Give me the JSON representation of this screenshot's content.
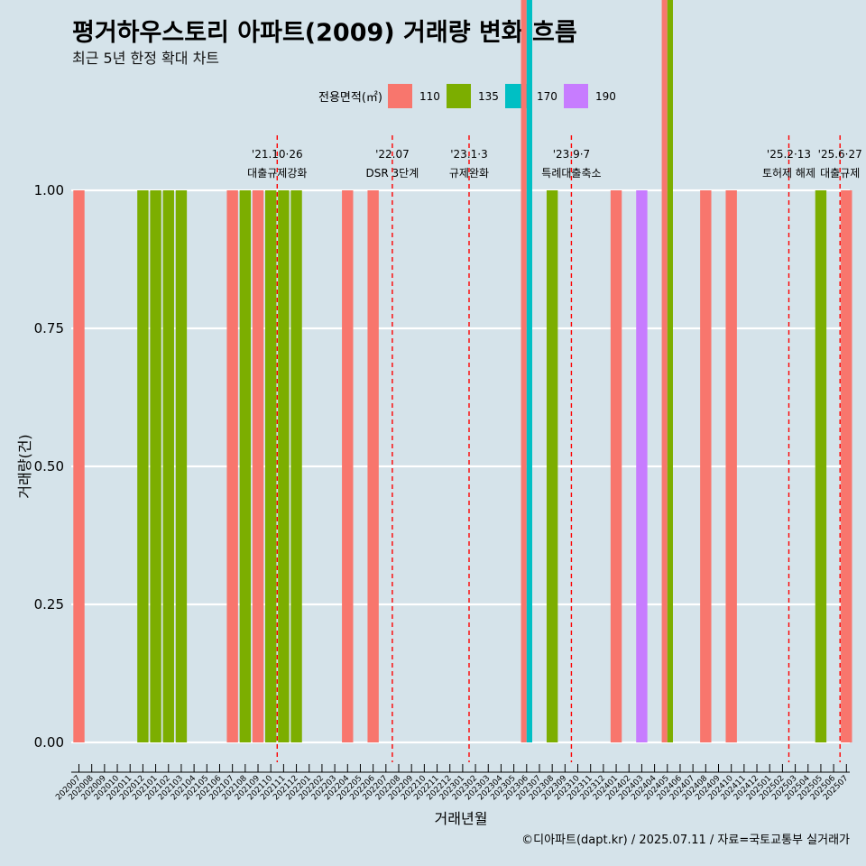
{
  "chart_data": {
    "type": "bar",
    "title": "평거하우스토리 아파트(2009) 거래량 변화 흐름",
    "subtitle": "최근 5년 한정 확대 차트",
    "xlabel": "거래년월",
    "ylabel": "거래량(건)",
    "ylim": [
      0,
      1
    ],
    "yticks": [
      "0.00",
      "0.25",
      "0.50",
      "0.75",
      "1.00"
    ],
    "grid": true,
    "legend_title": "전용면적(㎡)",
    "legend_position": "top",
    "caption": "©디아파트(dapt.kr) / 2025.07.11 / 자료=국토교통부 실거래가",
    "categories": [
      "202007",
      "202008",
      "202009",
      "202010",
      "202011",
      "202012",
      "202101",
      "202102",
      "202103",
      "202104",
      "202105",
      "202106",
      "202107",
      "202108",
      "202109",
      "202110",
      "202111",
      "202112",
      "202201",
      "202202",
      "202203",
      "202204",
      "202205",
      "202206",
      "202207",
      "202208",
      "202209",
      "202210",
      "202211",
      "202212",
      "202301",
      "202302",
      "202303",
      "202304",
      "202305",
      "202306",
      "202307",
      "202308",
      "202309",
      "202310",
      "202311",
      "202312",
      "202401",
      "202402",
      "202403",
      "202404",
      "202405",
      "202406",
      "202407",
      "202408",
      "202409",
      "202410",
      "202411",
      "202412",
      "202501",
      "202502",
      "202503",
      "202504",
      "202505",
      "202506",
      "202507"
    ],
    "series": [
      {
        "name": "110",
        "color": "#f8766d",
        "values": [
          1,
          0,
          0,
          0,
          0,
          0,
          0,
          0,
          0,
          0,
          0,
          0,
          1,
          0,
          1,
          0,
          0,
          0,
          0,
          0,
          0,
          1,
          0,
          1,
          0,
          0,
          0,
          0,
          0,
          0,
          0,
          0,
          0,
          0,
          0,
          1,
          0,
          0,
          0,
          0,
          0,
          0,
          1,
          0,
          0,
          0,
          1,
          0,
          0,
          1,
          0,
          1,
          0,
          0,
          0,
          0,
          0,
          0,
          0,
          0,
          1
        ]
      },
      {
        "name": "135",
        "color": "#7cae00",
        "values": [
          0,
          0,
          0,
          0,
          0,
          1,
          1,
          1,
          1,
          0,
          0,
          0,
          0,
          1,
          0,
          1,
          1,
          1,
          0,
          0,
          0,
          0,
          0,
          0,
          0,
          0,
          0,
          0,
          0,
          0,
          0,
          0,
          0,
          0,
          0,
          0,
          0,
          1,
          0,
          0,
          0,
          0,
          0,
          0,
          0,
          0,
          1,
          0,
          0,
          0,
          0,
          0,
          0,
          0,
          0,
          0,
          0,
          0,
          1,
          0,
          0
        ]
      },
      {
        "name": "170",
        "color": "#00bfc4",
        "values": [
          0,
          0,
          0,
          0,
          0,
          0,
          0,
          0,
          0,
          0,
          0,
          0,
          0,
          0,
          0,
          0,
          0,
          0,
          0,
          0,
          0,
          0,
          0,
          0,
          0,
          0,
          0,
          0,
          0,
          0,
          0,
          0,
          0,
          0,
          0,
          1,
          0,
          0,
          0,
          0,
          0,
          0,
          0,
          0,
          0,
          0,
          0,
          0,
          0,
          0,
          0,
          0,
          0,
          0,
          0,
          0,
          0,
          0,
          0,
          0,
          0
        ]
      },
      {
        "name": "190",
        "color": "#c77cff",
        "values": [
          0,
          0,
          0,
          0,
          0,
          0,
          0,
          0,
          0,
          0,
          0,
          0,
          0,
          0,
          0,
          0,
          0,
          0,
          0,
          0,
          0,
          0,
          0,
          0,
          0,
          0,
          0,
          0,
          0,
          0,
          0,
          0,
          0,
          0,
          0,
          0,
          0,
          0,
          0,
          0,
          0,
          0,
          0,
          0,
          1,
          0,
          0,
          0,
          0,
          0,
          0,
          0,
          0,
          0,
          0,
          0,
          0,
          0,
          0,
          0,
          0
        ]
      }
    ],
    "annotations": [
      {
        "x": "202110",
        "date": "'21.10·26",
        "label": "대출규제강화"
      },
      {
        "x": "202207",
        "date": "'22.07",
        "label": "DSR 3단계"
      },
      {
        "x": "202301",
        "date": "'23.1·3",
        "label": "규제완화"
      },
      {
        "x": "202309",
        "date": "'23.9·7",
        "label": "특례대출축소"
      },
      {
        "x": "202502",
        "date": "'25.2·13",
        "label": "토허제 해제"
      },
      {
        "x": "202506",
        "date": "'25.6·27",
        "label": "대출규제"
      }
    ]
  }
}
